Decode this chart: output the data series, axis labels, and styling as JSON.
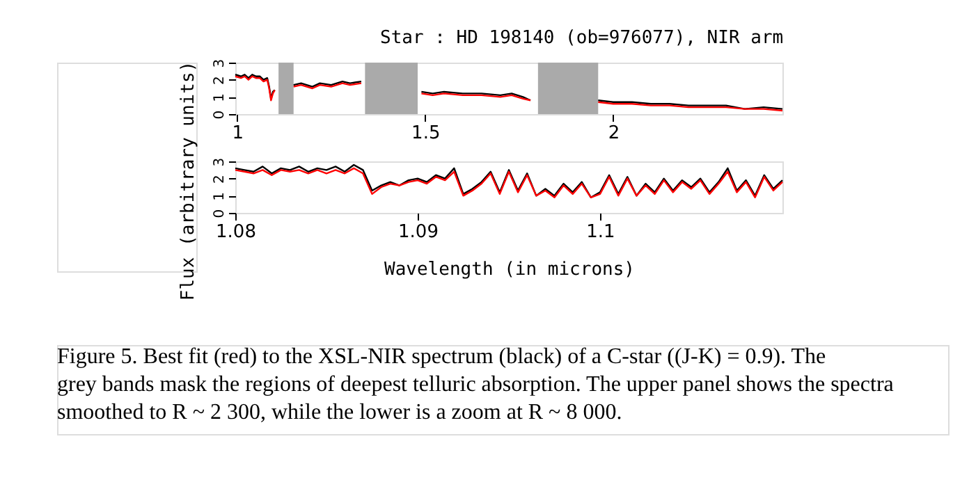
{
  "chart_data": [
    {
      "type": "line",
      "title": "Star : HD 198140 (ob=976077), NIR arm",
      "ylabel": "Flux (arbitrary units)",
      "x": [
        0.995,
        1.01,
        1.02,
        1.03,
        1.04,
        1.05,
        1.06,
        1.07,
        1.08,
        1.085,
        1.09,
        1.095,
        1.1,
        1.11,
        1.15,
        1.17,
        1.2,
        1.22,
        1.25,
        1.28,
        1.3,
        1.33,
        1.34,
        1.49,
        1.52,
        1.55,
        1.6,
        1.65,
        1.7,
        1.73,
        1.76,
        1.78,
        1.8,
        1.96,
        2.0,
        2.05,
        2.1,
        2.15,
        2.2,
        2.25,
        2.3,
        2.35,
        2.4,
        2.45
      ],
      "series": [
        {
          "color": "#000000",
          "values": [
            2.3,
            2.2,
            2.3,
            2.1,
            2.3,
            2.2,
            2.2,
            2.0,
            2.1,
            1.6,
            0.9,
            1.3,
            1.4,
            null,
            1.7,
            1.8,
            1.6,
            1.8,
            1.7,
            1.9,
            1.8,
            1.9,
            null,
            1.3,
            1.2,
            1.3,
            1.2,
            1.2,
            1.1,
            1.2,
            1.0,
            0.8,
            null,
            0.8,
            0.7,
            0.7,
            0.6,
            0.6,
            0.5,
            0.5,
            0.5,
            0.3,
            0.4,
            0.3
          ]
        },
        {
          "color": "#ff0000",
          "values": [
            2.2,
            2.1,
            2.2,
            2.0,
            2.2,
            2.1,
            2.1,
            1.9,
            2.0,
            1.5,
            0.8,
            1.2,
            1.4,
            null,
            1.6,
            1.7,
            1.5,
            1.7,
            1.6,
            1.8,
            1.7,
            1.8,
            null,
            1.2,
            1.1,
            1.2,
            1.1,
            1.1,
            1.0,
            1.1,
            0.9,
            0.8,
            null,
            0.7,
            0.6,
            0.6,
            0.5,
            0.5,
            0.4,
            0.4,
            0.4,
            0.3,
            0.3,
            0.2
          ]
        }
      ],
      "bands": [
        {
          "axis": "x",
          "from": 1.11,
          "to": 1.15,
          "color": "#aaaaaa"
        },
        {
          "axis": "x",
          "from": 1.34,
          "to": 1.48,
          "color": "#aaaaaa"
        },
        {
          "axis": "x",
          "from": 1.8,
          "to": 1.96,
          "color": "#aaaaaa"
        }
      ],
      "xlim": [
        0.995,
        2.45
      ],
      "xticks": [
        {
          "value": 1,
          "label": "1"
        },
        1.5,
        {
          "value": 2,
          "label": "2"
        }
      ],
      "ylim": [
        0,
        3
      ],
      "yticks": [
        0,
        1,
        2,
        3
      ],
      "grid": false
    },
    {
      "type": "line",
      "xlabel": "Wavelength (in microns)",
      "x": [
        1.08,
        1.0805,
        1.081,
        1.0815,
        1.082,
        1.0825,
        1.083,
        1.0835,
        1.084,
        1.0845,
        1.085,
        1.0855,
        1.086,
        1.0865,
        1.087,
        1.0875,
        1.088,
        1.0885,
        1.089,
        1.0895,
        1.09,
        1.0905,
        1.091,
        1.0915,
        1.092,
        1.0925,
        1.093,
        1.0935,
        1.094,
        1.0945,
        1.095,
        1.0955,
        1.096,
        1.0965,
        1.097,
        1.0975,
        1.098,
        1.0985,
        1.099,
        1.0995,
        1.1,
        1.1005,
        1.101,
        1.1015,
        1.102,
        1.1025,
        1.103,
        1.1035,
        1.104,
        1.1045,
        1.105,
        1.1055,
        1.106,
        1.1065,
        1.107,
        1.1075,
        1.108,
        1.1085,
        1.109,
        1.1095,
        1.11
      ],
      "series": [
        {
          "color": "#000000",
          "values": [
            2.6,
            2.5,
            2.4,
            2.7,
            2.3,
            2.6,
            2.5,
            2.7,
            2.4,
            2.6,
            2.5,
            2.7,
            2.4,
            2.8,
            2.5,
            1.3,
            1.6,
            1.8,
            1.6,
            1.9,
            2.0,
            1.8,
            2.2,
            2.0,
            2.6,
            1.1,
            1.4,
            1.8,
            2.4,
            1.2,
            2.5,
            1.3,
            2.3,
            1.0,
            1.4,
            1.0,
            1.7,
            1.2,
            1.8,
            0.9,
            1.2,
            2.2,
            1.1,
            2.1,
            1.0,
            1.7,
            1.2,
            2.0,
            1.3,
            1.9,
            1.5,
            2.0,
            1.2,
            1.8,
            2.6,
            1.3,
            1.9,
            1.0,
            2.2,
            1.4,
            1.9
          ]
        },
        {
          "color": "#ff0000",
          "values": [
            2.5,
            2.4,
            2.3,
            2.5,
            2.2,
            2.5,
            2.4,
            2.5,
            2.3,
            2.5,
            2.3,
            2.5,
            2.3,
            2.6,
            2.3,
            1.1,
            1.5,
            1.7,
            1.6,
            1.8,
            1.9,
            1.7,
            2.1,
            1.9,
            2.4,
            1.0,
            1.3,
            1.7,
            2.3,
            1.1,
            2.4,
            1.2,
            2.2,
            1.0,
            1.3,
            0.9,
            1.6,
            1.1,
            1.7,
            0.9,
            1.1,
            2.1,
            1.0,
            2.0,
            1.0,
            1.6,
            1.1,
            1.9,
            1.2,
            1.8,
            1.4,
            1.9,
            1.1,
            1.7,
            2.4,
            1.2,
            1.8,
            0.9,
            2.1,
            1.3,
            1.8
          ]
        }
      ],
      "xlim": [
        1.08,
        1.11
      ],
      "xticks": [
        {
          "value": 1.08,
          "label": "1.08"
        },
        {
          "value": 1.09,
          "label": "1.09"
        },
        {
          "value": 1.1,
          "label": "1.1"
        }
      ],
      "ylim": [
        0,
        3
      ],
      "yticks": [
        0,
        1,
        2,
        3
      ],
      "grid": false,
      "annotations": [
        "Figure 5.  Best fit (red) to the XSL-NIR spectrum (black) of a C-star ((J-K) = 0.9).  The grey bands mask the regions of deepest telluric absorption. The upper panel shows the spectra smoothed to R ~ 2 300, while the lower is a zoom at R ~ 8 000."
      ]
    }
  ]
}
